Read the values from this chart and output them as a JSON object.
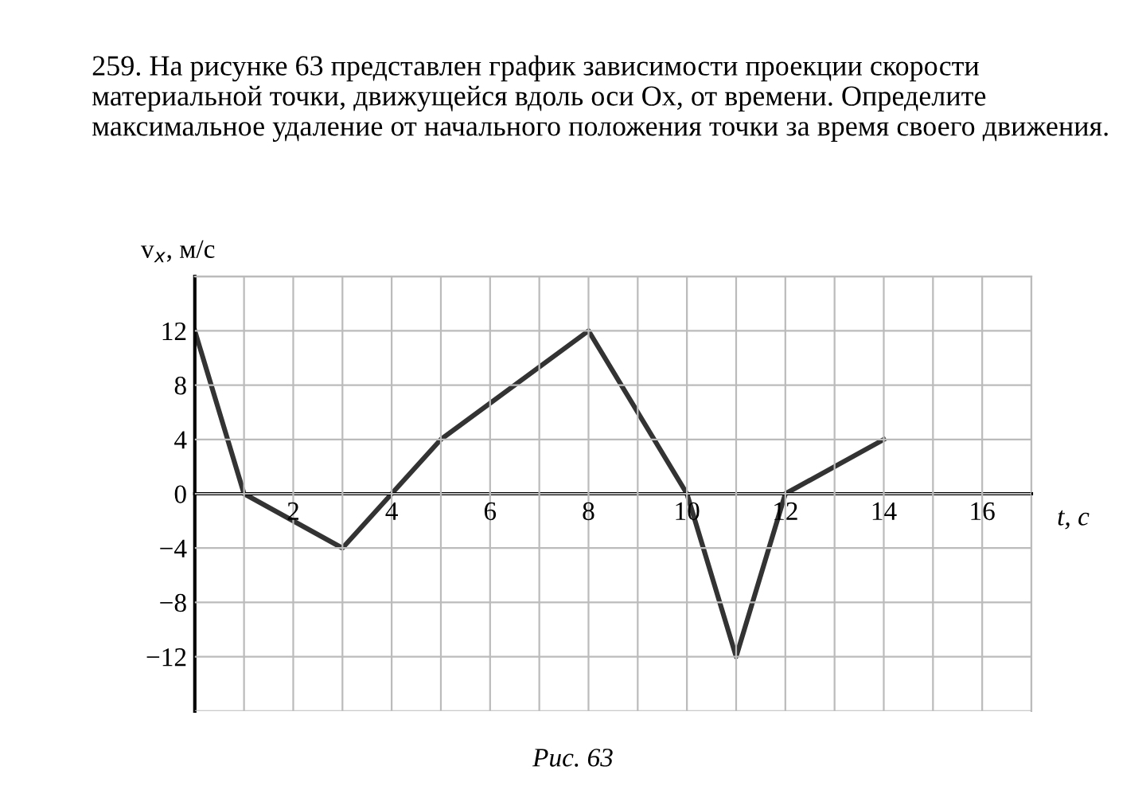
{
  "chart_data": {
    "type": "line",
    "title": "259. На рисунке 63 представлен график зависимости проекции скорости материальной точки, движущейся вдоль оси Ox, от времени. Определите максимальное удаление от начального положения точки за время своего движения.",
    "xlabel": "t, с",
    "ylabel": "v$_{x}$, м/с",
    "x": [
      0,
      1,
      3,
      4,
      5,
      8,
      10,
      11,
      12,
      14
    ],
    "series": [
      {
        "color": "#333333",
        "values": [
          12,
          0,
          -4,
          0,
          4,
          12,
          0,
          -12,
          0,
          4
        ]
      }
    ],
    "xlim": [
      0,
      17
    ],
    "ylim": [
      -16,
      16
    ],
    "xticks": [
      {
        "value": 1,
        "label": null
      },
      2,
      {
        "value": 3,
        "label": null
      },
      4,
      {
        "value": 5,
        "label": null
      },
      6,
      {
        "value": 7,
        "label": null
      },
      8,
      {
        "value": 9,
        "label": null
      },
      10,
      {
        "value": 11,
        "label": null
      },
      12,
      {
        "value": 13,
        "label": null
      },
      14,
      {
        "value": 15,
        "label": null
      },
      16,
      {
        "value": 17,
        "label": null
      }
    ],
    "yticks": [
      {
        "value": -16,
        "label": null
      },
      {
        "value": -12,
        "label": "−12"
      },
      {
        "value": -8,
        "label": "−8"
      },
      {
        "value": -4,
        "label": "−4"
      },
      0,
      4,
      8,
      12,
      {
        "value": 16,
        "label": null
      }
    ],
    "grid": true,
    "marker": "none",
    "line_style": "solid",
    "annotations": [
      "Рис. 63"
    ]
  }
}
